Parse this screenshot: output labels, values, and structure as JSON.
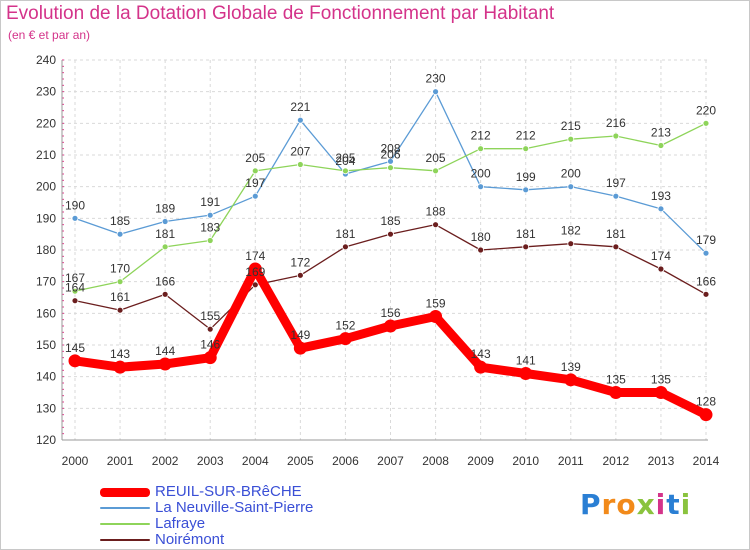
{
  "title": "Evolution de la Dotation Globale de Fonctionnement par Habitant",
  "subtitle": "(en € et par an)",
  "logo": "Proxiti",
  "chart_data": {
    "type": "line",
    "x": [
      "2000",
      "2001",
      "2002",
      "2003",
      "2004",
      "2005",
      "2006",
      "2007",
      "2008",
      "2009",
      "2010",
      "2011",
      "2012",
      "2013",
      "2014"
    ],
    "ylim": [
      120,
      240
    ],
    "yticks": [
      "120",
      "130",
      "140",
      "150",
      "160",
      "170",
      "180",
      "190",
      "200",
      "210",
      "220",
      "230",
      "240"
    ],
    "grid": true,
    "legend_position": "bottom-left",
    "series": [
      {
        "name": "REUIL-SUR-BRêCHE",
        "color": "#ff0000",
        "width": "thick",
        "values": [
          145,
          143,
          144,
          146,
          174,
          149,
          152,
          156,
          159,
          143,
          141,
          139,
          135,
          135,
          128
        ],
        "labels": [
          "145",
          "143",
          "144",
          "146",
          "174",
          "149",
          "152",
          "156",
          "159",
          "143",
          "141",
          "139",
          "135",
          "135",
          "128"
        ]
      },
      {
        "name": "La Neuville-Saint-Pierre",
        "color": "#5b9bd5",
        "width": "thin",
        "values": [
          190,
          185,
          189,
          191,
          197,
          221,
          204,
          208,
          230,
          200,
          199,
          200,
          197,
          193,
          179
        ],
        "labels": [
          "190",
          "185",
          "189",
          "191",
          "197",
          "221",
          "204",
          "208",
          "230",
          "200",
          "199",
          "200",
          "197",
          "193",
          "179"
        ]
      },
      {
        "name": "Lafraye",
        "color": "#8ed45a",
        "width": "thin",
        "values": [
          167,
          170,
          181,
          183,
          205,
          207,
          205,
          206,
          205,
          212,
          212,
          215,
          216,
          213,
          220
        ],
        "labels": [
          "167",
          "170",
          "181",
          "183",
          "205",
          "207",
          "205",
          "206",
          "205",
          "212",
          "212",
          "215",
          "216",
          "213",
          "220"
        ]
      },
      {
        "name": "Noirémont",
        "color": "#6b1e1e",
        "width": "thin",
        "values": [
          164,
          161,
          166,
          155,
          169,
          172,
          181,
          185,
          188,
          180,
          181,
          182,
          181,
          174,
          166
        ],
        "labels": [
          "164",
          "161",
          "166",
          "155",
          "169",
          "172",
          "181",
          "185",
          "188",
          "180",
          "181",
          "182",
          "181",
          "174",
          "166"
        ]
      }
    ]
  }
}
